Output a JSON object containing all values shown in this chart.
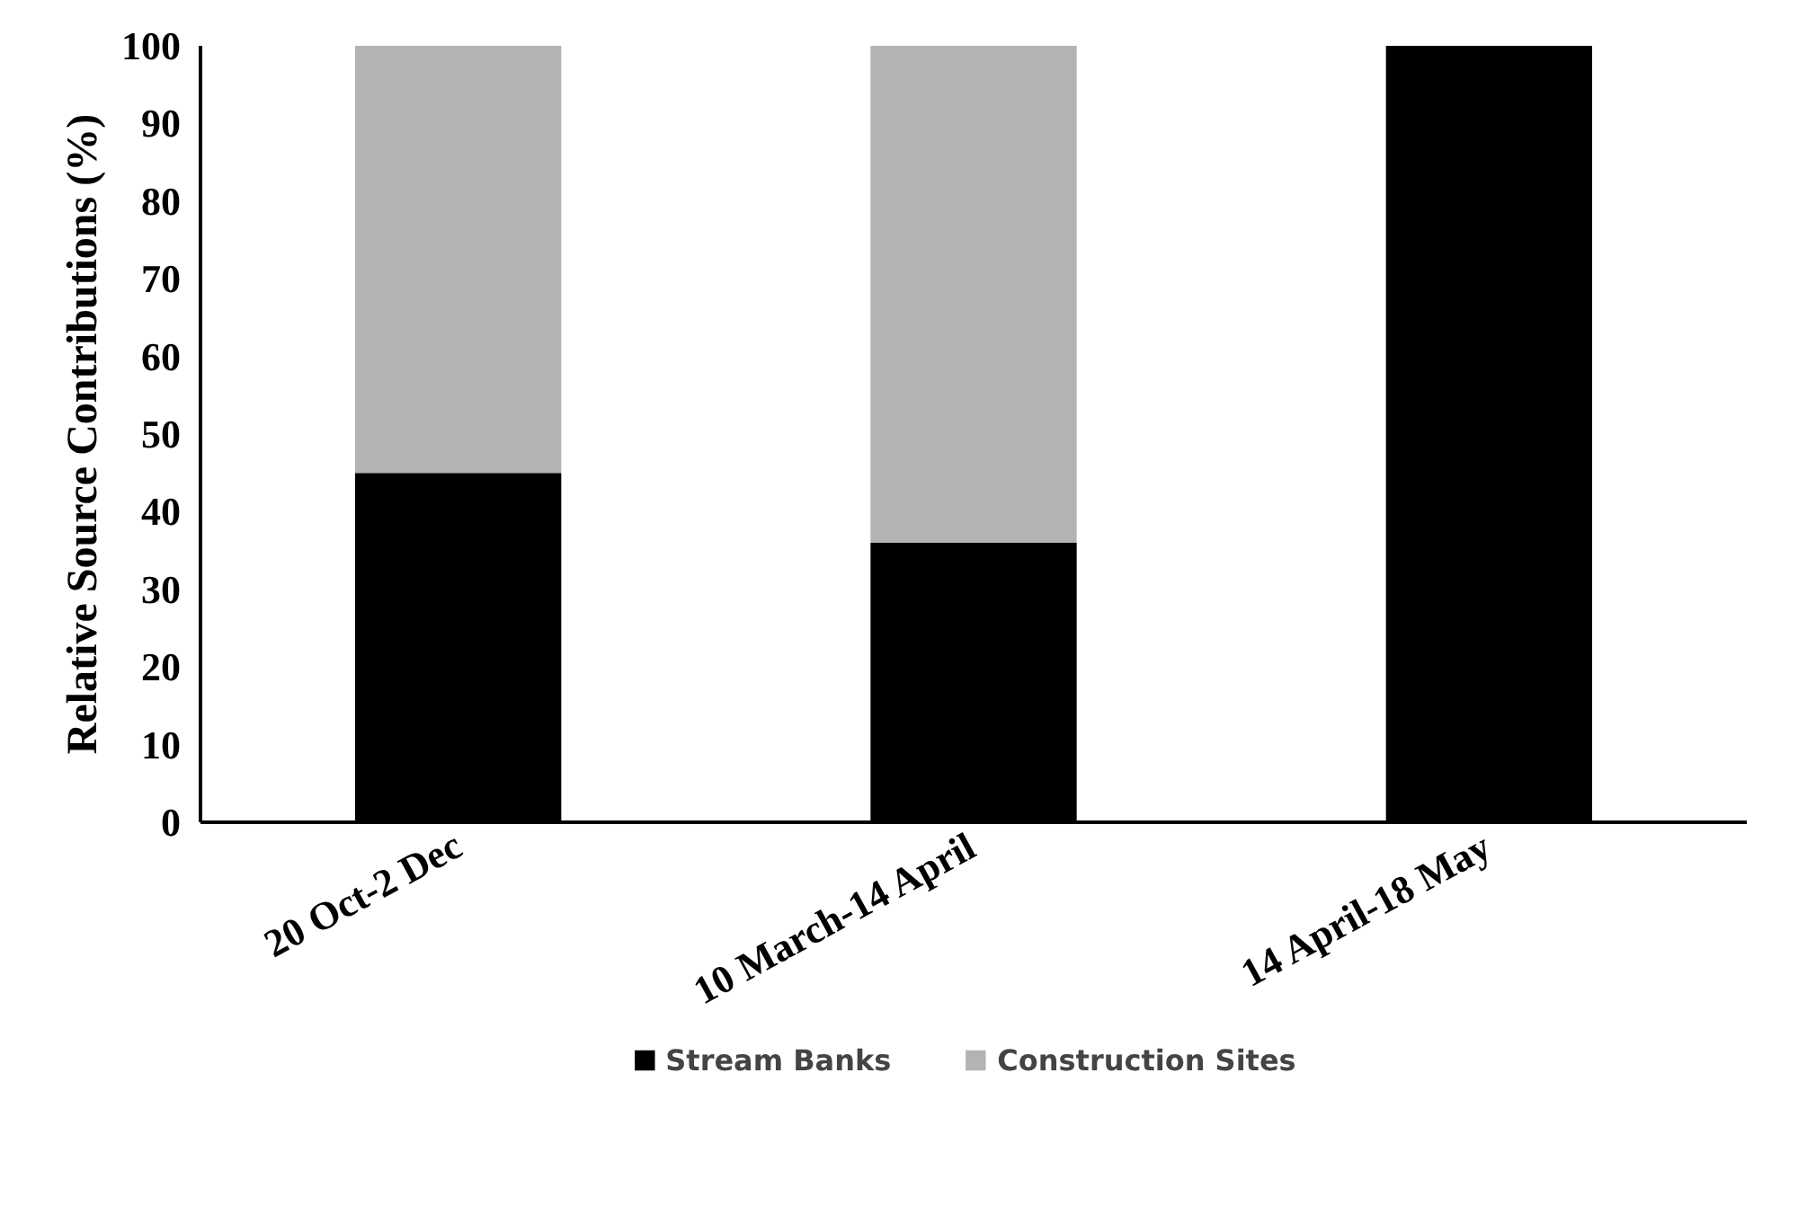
{
  "chart_data": {
    "type": "bar",
    "stacked": true,
    "ylabel": "Relative Source Contributions (%)",
    "categories": [
      "20 Oct-2 Dec",
      "10 March-14 April",
      "14 April-18 May"
    ],
    "series": [
      {
        "name": "Stream Banks",
        "color": "#000000",
        "values": [
          45,
          36,
          100
        ]
      },
      {
        "name": "Construction Sites",
        "color": "#b3b3b3",
        "values": [
          55,
          64,
          0
        ]
      }
    ],
    "ylim": [
      0,
      100
    ],
    "yticks": [
      0,
      10,
      20,
      30,
      40,
      50,
      60,
      70,
      80,
      90,
      100
    ],
    "grid": false,
    "legend": "bottom"
  }
}
